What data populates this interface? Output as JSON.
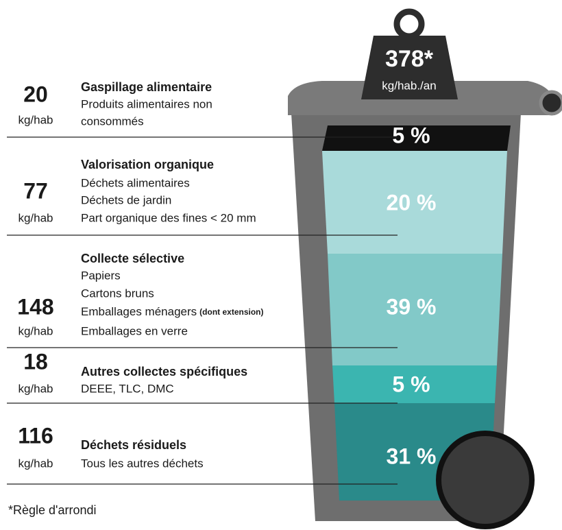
{
  "weight": {
    "value": "378*",
    "unit": "kg/hab./an"
  },
  "rows": [
    {
      "amount": "20",
      "unit": "kg/hab",
      "title": "Gaspillage alimentaire",
      "lines": [
        "Produits alimentaires non",
        "consommés"
      ],
      "percent": "5 %"
    },
    {
      "amount": "77",
      "unit": "kg/hab",
      "title": "Valorisation organique",
      "lines": [
        "Déchets alimentaires",
        "Déchets de jardin",
        "Part organique des fines < 20 mm"
      ],
      "percent": "20 %"
    },
    {
      "amount": "148",
      "unit": "kg/hab",
      "title": "Collecte sélective",
      "lines": [
        "Papiers",
        "Cartons bruns",
        "Emballages ménagers",
        "Emballages en verre"
      ],
      "line_note": "(dont extension)",
      "percent": "39 %"
    },
    {
      "amount": "18",
      "unit": "kg/hab",
      "title": "Autres collectes spécifiques",
      "lines": [
        "DEEE, TLC, DMC"
      ],
      "percent": "5 %"
    },
    {
      "amount": "116",
      "unit": "kg/hab",
      "title": "Déchets résiduels",
      "lines": [
        "Tous les autres déchets"
      ],
      "percent": "31 %"
    }
  ],
  "footnote": "*Règle d'arrondi"
}
